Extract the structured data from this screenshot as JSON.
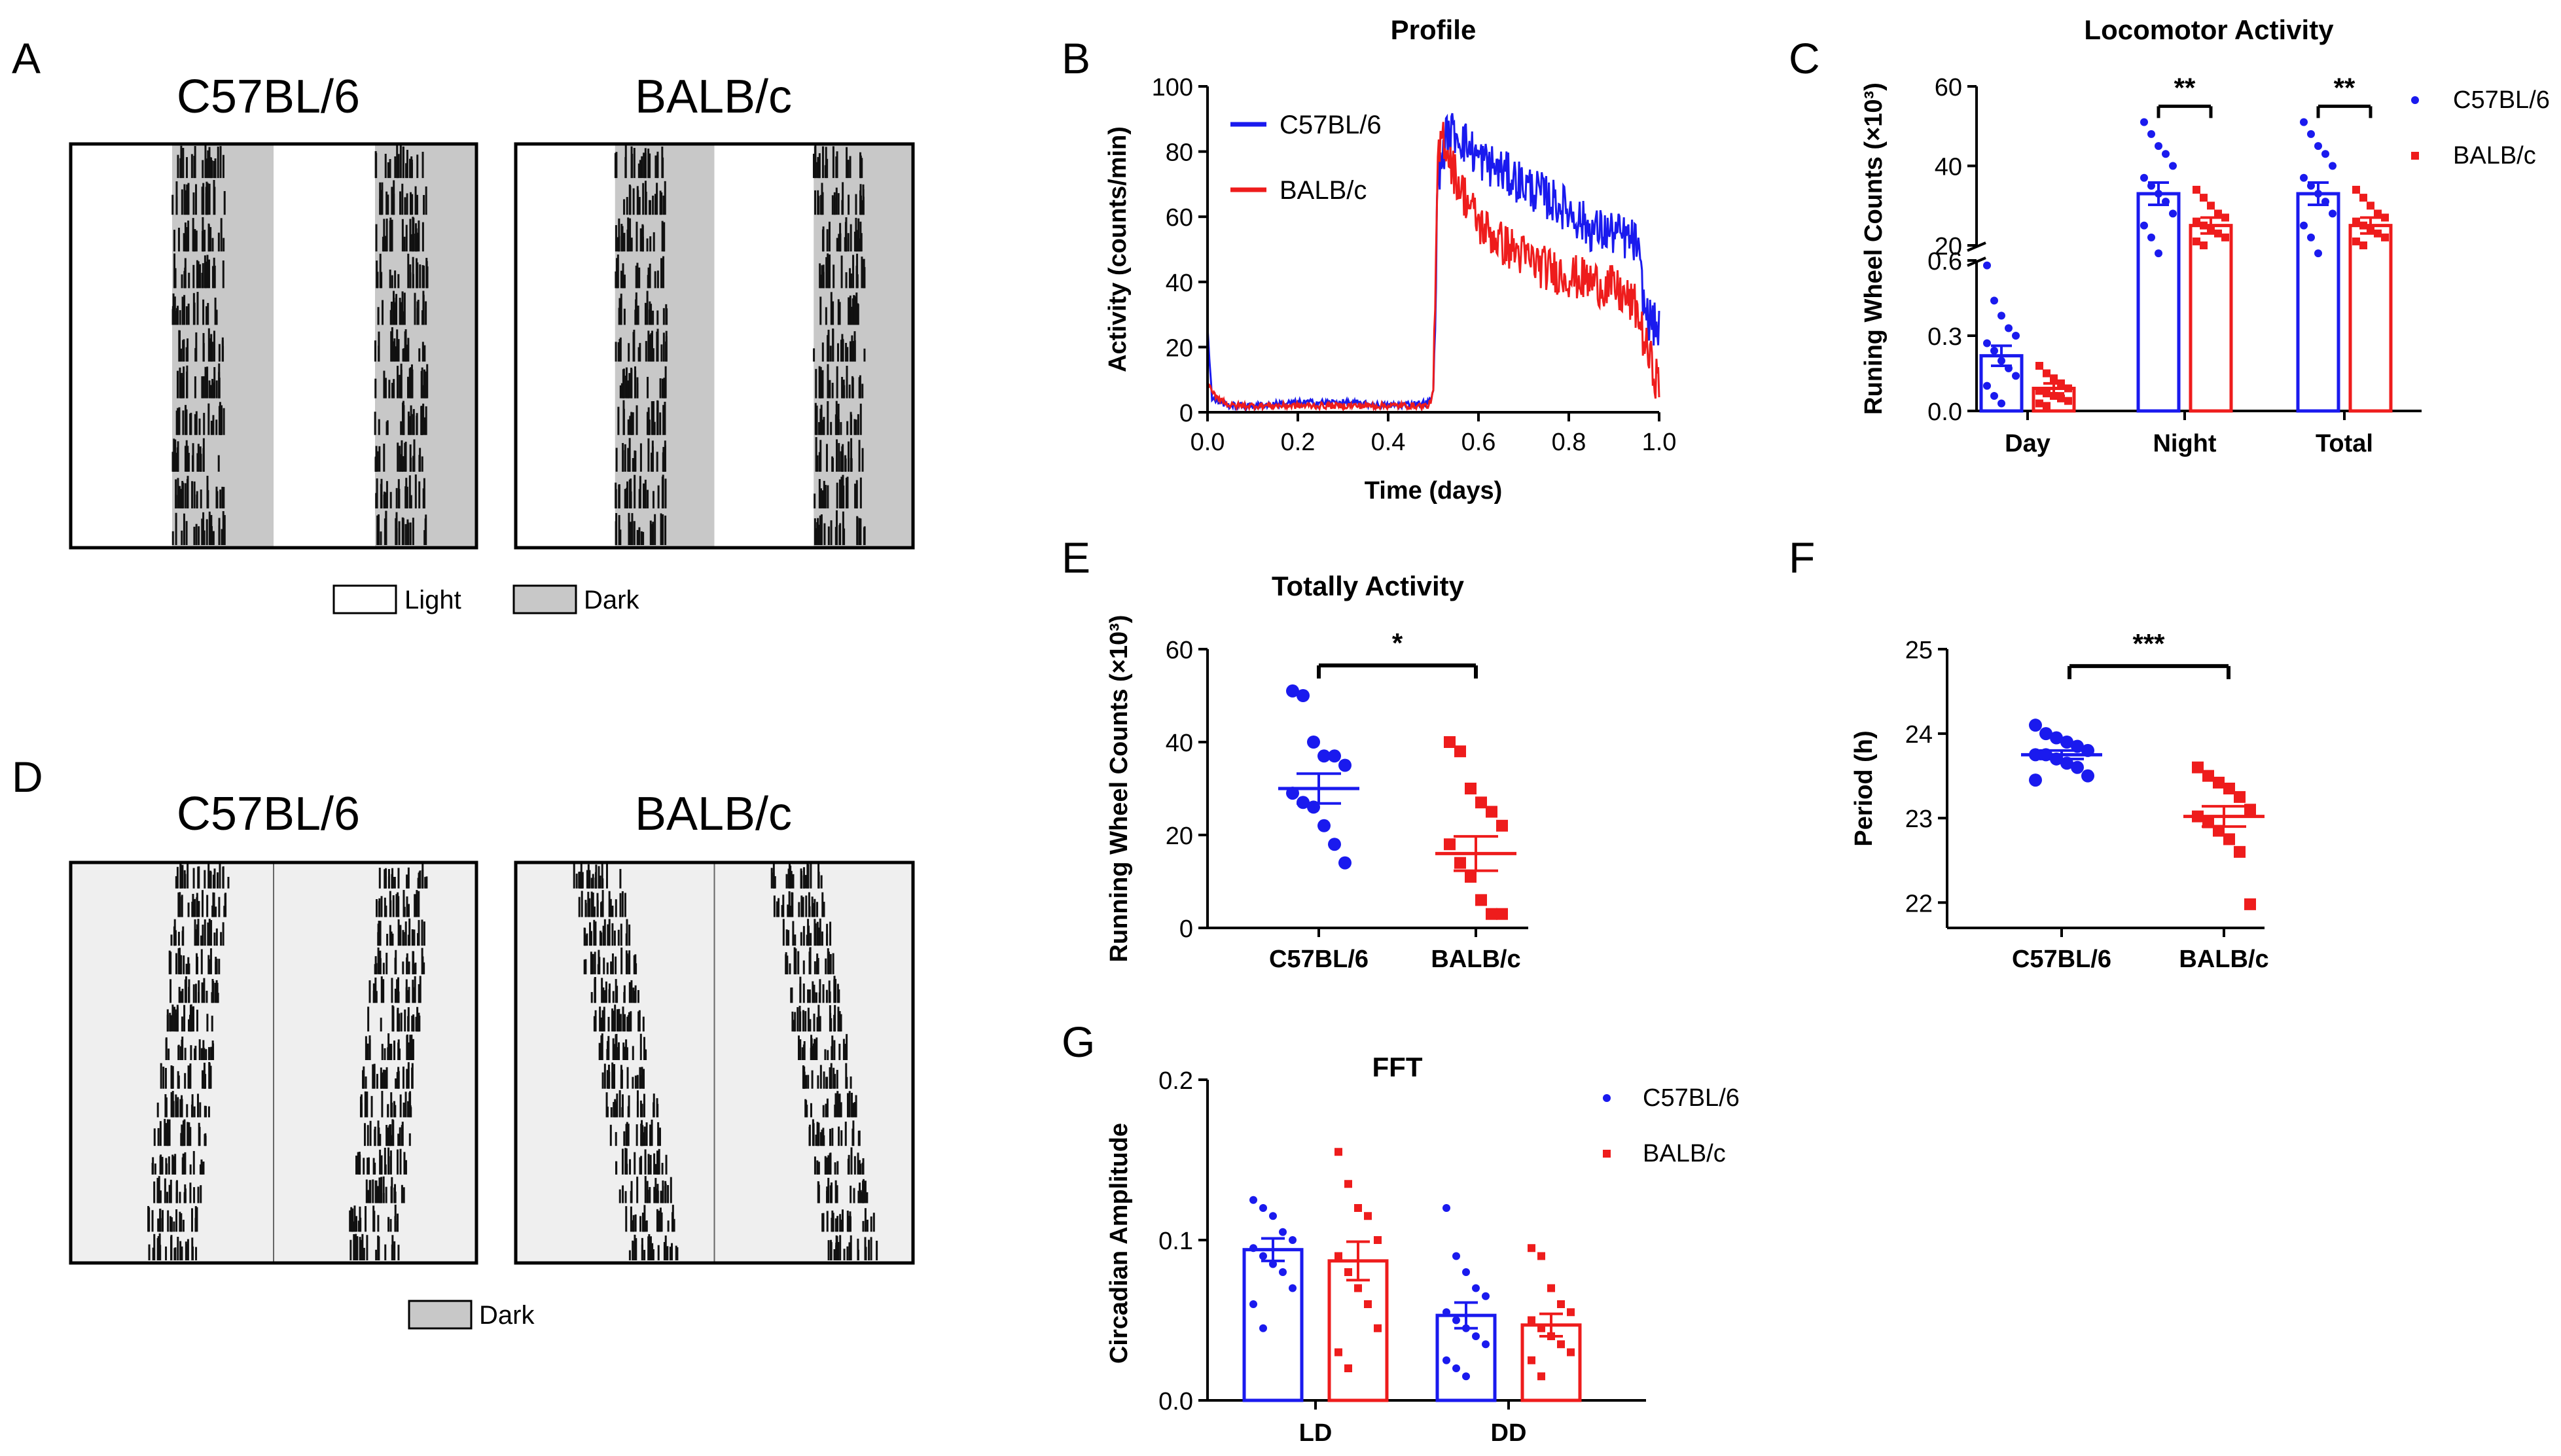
{
  "colors": {
    "blue": "#1a1aee",
    "red": "#ee1c1c",
    "dark_shade": "#c8c8c8",
    "dd_shade": "#efefef",
    "black": "#000000"
  },
  "panels": {
    "A": {
      "letter": "A",
      "strain1": "C57BL/6",
      "strain2": "BALB/c",
      "legend_light": "Light",
      "legend_dark": "Dark"
    },
    "D": {
      "letter": "D",
      "strain1": "C57BL/6",
      "strain2": "BALB/c",
      "legend_dark": "Dark"
    },
    "B": {
      "letter": "B"
    },
    "C": {
      "letter": "C"
    },
    "E": {
      "letter": "E"
    },
    "F": {
      "letter": "F"
    },
    "G": {
      "letter": "G"
    }
  },
  "chart_data": [
    {
      "id": "B",
      "type": "line",
      "title": "Profile",
      "xlabel": "Time (days)",
      "ylabel": "Activity (counts/min)",
      "xlim": [
        0,
        1
      ],
      "ylim": [
        0,
        100
      ],
      "xticks": [
        "0.0",
        "0.2",
        "0.4",
        "0.6",
        "0.8",
        "1.0"
      ],
      "yticks": [
        "0",
        "20",
        "40",
        "60",
        "80",
        "100"
      ],
      "legend": "top-left",
      "series": [
        {
          "name": "C57BL/6",
          "color": "#1a1aee",
          "x": [
            0,
            0.01,
            0.05,
            0.1,
            0.2,
            0.3,
            0.4,
            0.49,
            0.5,
            0.51,
            0.53,
            0.55,
            0.6,
            0.65,
            0.7,
            0.75,
            0.8,
            0.85,
            0.9,
            0.95,
            0.97,
            1.0
          ],
          "y": [
            25,
            3,
            1,
            1,
            2,
            2,
            1,
            2,
            5,
            72,
            85,
            86,
            78,
            74,
            70,
            66,
            62,
            56,
            55,
            52,
            30,
            25
          ]
        },
        {
          "name": "BALB/c",
          "color": "#ee1c1c",
          "x": [
            0,
            0.01,
            0.05,
            0.1,
            0.2,
            0.3,
            0.4,
            0.49,
            0.5,
            0.51,
            0.52,
            0.55,
            0.6,
            0.65,
            0.7,
            0.75,
            0.8,
            0.85,
            0.9,
            0.95,
            0.97,
            1.0
          ],
          "y": [
            8,
            5,
            1,
            1,
            1,
            1,
            1,
            1,
            5,
            75,
            86,
            72,
            58,
            52,
            48,
            44,
            42,
            40,
            38,
            32,
            20,
            8
          ]
        }
      ]
    },
    {
      "id": "C",
      "type": "bar",
      "title": "Locomotor Activity",
      "ylabel": "Runing Wheel Counts (×10³)",
      "categories": [
        "Day",
        "Night",
        "Total"
      ],
      "yticks_lower": [
        "0.0",
        "0.3",
        "0.6"
      ],
      "yticks_upper": [
        "20",
        "40",
        "60"
      ],
      "axis_break": true,
      "legend": "top-right",
      "series": [
        {
          "name": "C57BL/6",
          "color": "#1a1aee",
          "values": [
            0.22,
            33,
            33
          ],
          "sem": [
            0.04,
            2.8,
            2.8
          ],
          "points": [
            [
              0.58,
              0.44,
              0.38,
              0.33,
              0.3,
              0.27,
              0.24,
              0.2,
              0.17,
              0.14,
              0.1,
              0.06,
              0.03
            ],
            [
              51,
              48,
              45,
              43,
              40,
              37,
              35,
              33,
              31,
              28,
              25,
              22,
              18
            ],
            [
              51,
              48,
              45,
              43,
              40,
              37,
              35,
              33,
              31,
              28,
              25,
              22,
              18
            ]
          ]
        },
        {
          "name": "BALB/c",
          "color": "#ee1c1c",
          "values": [
            0.09,
            25,
            25
          ],
          "sem": [
            0.02,
            2.0,
            2.0
          ],
          "points": [
            [
              0.18,
              0.15,
              0.13,
              0.11,
              0.09,
              0.08,
              0.07,
              0.06,
              0.05,
              0.04,
              0.03,
              0.02
            ],
            [
              34,
              32,
              30,
              28,
              27,
              26,
              25,
              24,
              23,
              22,
              21,
              20
            ],
            [
              34,
              32,
              30,
              28,
              27,
              26,
              25,
              24,
              23,
              22,
              21,
              20
            ]
          ]
        }
      ],
      "annotations": [
        {
          "between": "Night",
          "text": "**"
        },
        {
          "between": "Total",
          "text": "**"
        }
      ]
    },
    {
      "id": "E",
      "type": "scatter",
      "title": "Totally Activity",
      "ylabel": "Running Wheel Counts (×10³)",
      "categories": [
        "C57BL/6",
        "BALB/c"
      ],
      "ylim": [
        0,
        60
      ],
      "yticks": [
        "0",
        "20",
        "40",
        "60"
      ],
      "series": [
        {
          "name": "C57BL/6",
          "color": "#1a1aee",
          "mean": 30,
          "sem": 3.2,
          "values": [
            51,
            50,
            40,
            37,
            37,
            35,
            29,
            27,
            26,
            22,
            18,
            14
          ]
        },
        {
          "name": "BALB/c",
          "color": "#ee1c1c",
          "mean": 16,
          "sem": 3.7,
          "values": [
            40,
            38,
            30,
            27,
            25,
            22,
            18,
            14,
            11,
            6,
            3,
            3
          ]
        }
      ],
      "annotations": [
        {
          "text": "*"
        }
      ]
    },
    {
      "id": "F",
      "type": "scatter",
      "ylabel": "Period (h)",
      "categories": [
        "C57BL/6",
        "BALB/c"
      ],
      "ylim": [
        21.7,
        25
      ],
      "yticks": [
        "22",
        "23",
        "24",
        "25"
      ],
      "series": [
        {
          "name": "C57BL/6",
          "color": "#1a1aee",
          "mean": 23.75,
          "sem": 0.05,
          "values": [
            24.1,
            24.0,
            23.95,
            23.9,
            23.85,
            23.8,
            23.75,
            23.75,
            23.7,
            23.65,
            23.6,
            23.5,
            23.45
          ]
        },
        {
          "name": "BALB/c",
          "color": "#ee1c1c",
          "mean": 23.02,
          "sem": 0.12,
          "values": [
            23.6,
            23.5,
            23.42,
            23.35,
            23.25,
            23.1,
            23.02,
            22.95,
            22.85,
            22.75,
            22.6,
            21.98
          ]
        }
      ],
      "annotations": [
        {
          "text": "***"
        }
      ]
    },
    {
      "id": "G",
      "type": "bar",
      "title": "FFT",
      "ylabel": "Circadian Amplitude",
      "categories": [
        "LD",
        "DD"
      ],
      "ylim": [
        0,
        0.2
      ],
      "yticks": [
        "0.0",
        "0.1",
        "0.2"
      ],
      "legend": "top-right",
      "series": [
        {
          "name": "C57BL/6",
          "color": "#1a1aee",
          "values": [
            0.094,
            0.053
          ],
          "sem": [
            0.007,
            0.008
          ],
          "points": [
            [
              0.125,
              0.12,
              0.115,
              0.105,
              0.1,
              0.095,
              0.09,
              0.085,
              0.08,
              0.07,
              0.06,
              0.045
            ],
            [
              0.12,
              0.09,
              0.08,
              0.07,
              0.065,
              0.055,
              0.05,
              0.045,
              0.04,
              0.035,
              0.025,
              0.02,
              0.015
            ]
          ]
        },
        {
          "name": "BALB/c",
          "color": "#ee1c1c",
          "values": [
            0.087,
            0.047
          ],
          "sem": [
            0.012,
            0.007
          ],
          "points": [
            [
              0.155,
              0.135,
              0.12,
              0.115,
              0.1,
              0.09,
              0.08,
              0.07,
              0.06,
              0.045,
              0.03,
              0.02
            ],
            [
              0.095,
              0.09,
              0.07,
              0.06,
              0.055,
              0.05,
              0.045,
              0.04,
              0.035,
              0.03,
              0.025,
              0.015
            ]
          ]
        }
      ]
    }
  ]
}
